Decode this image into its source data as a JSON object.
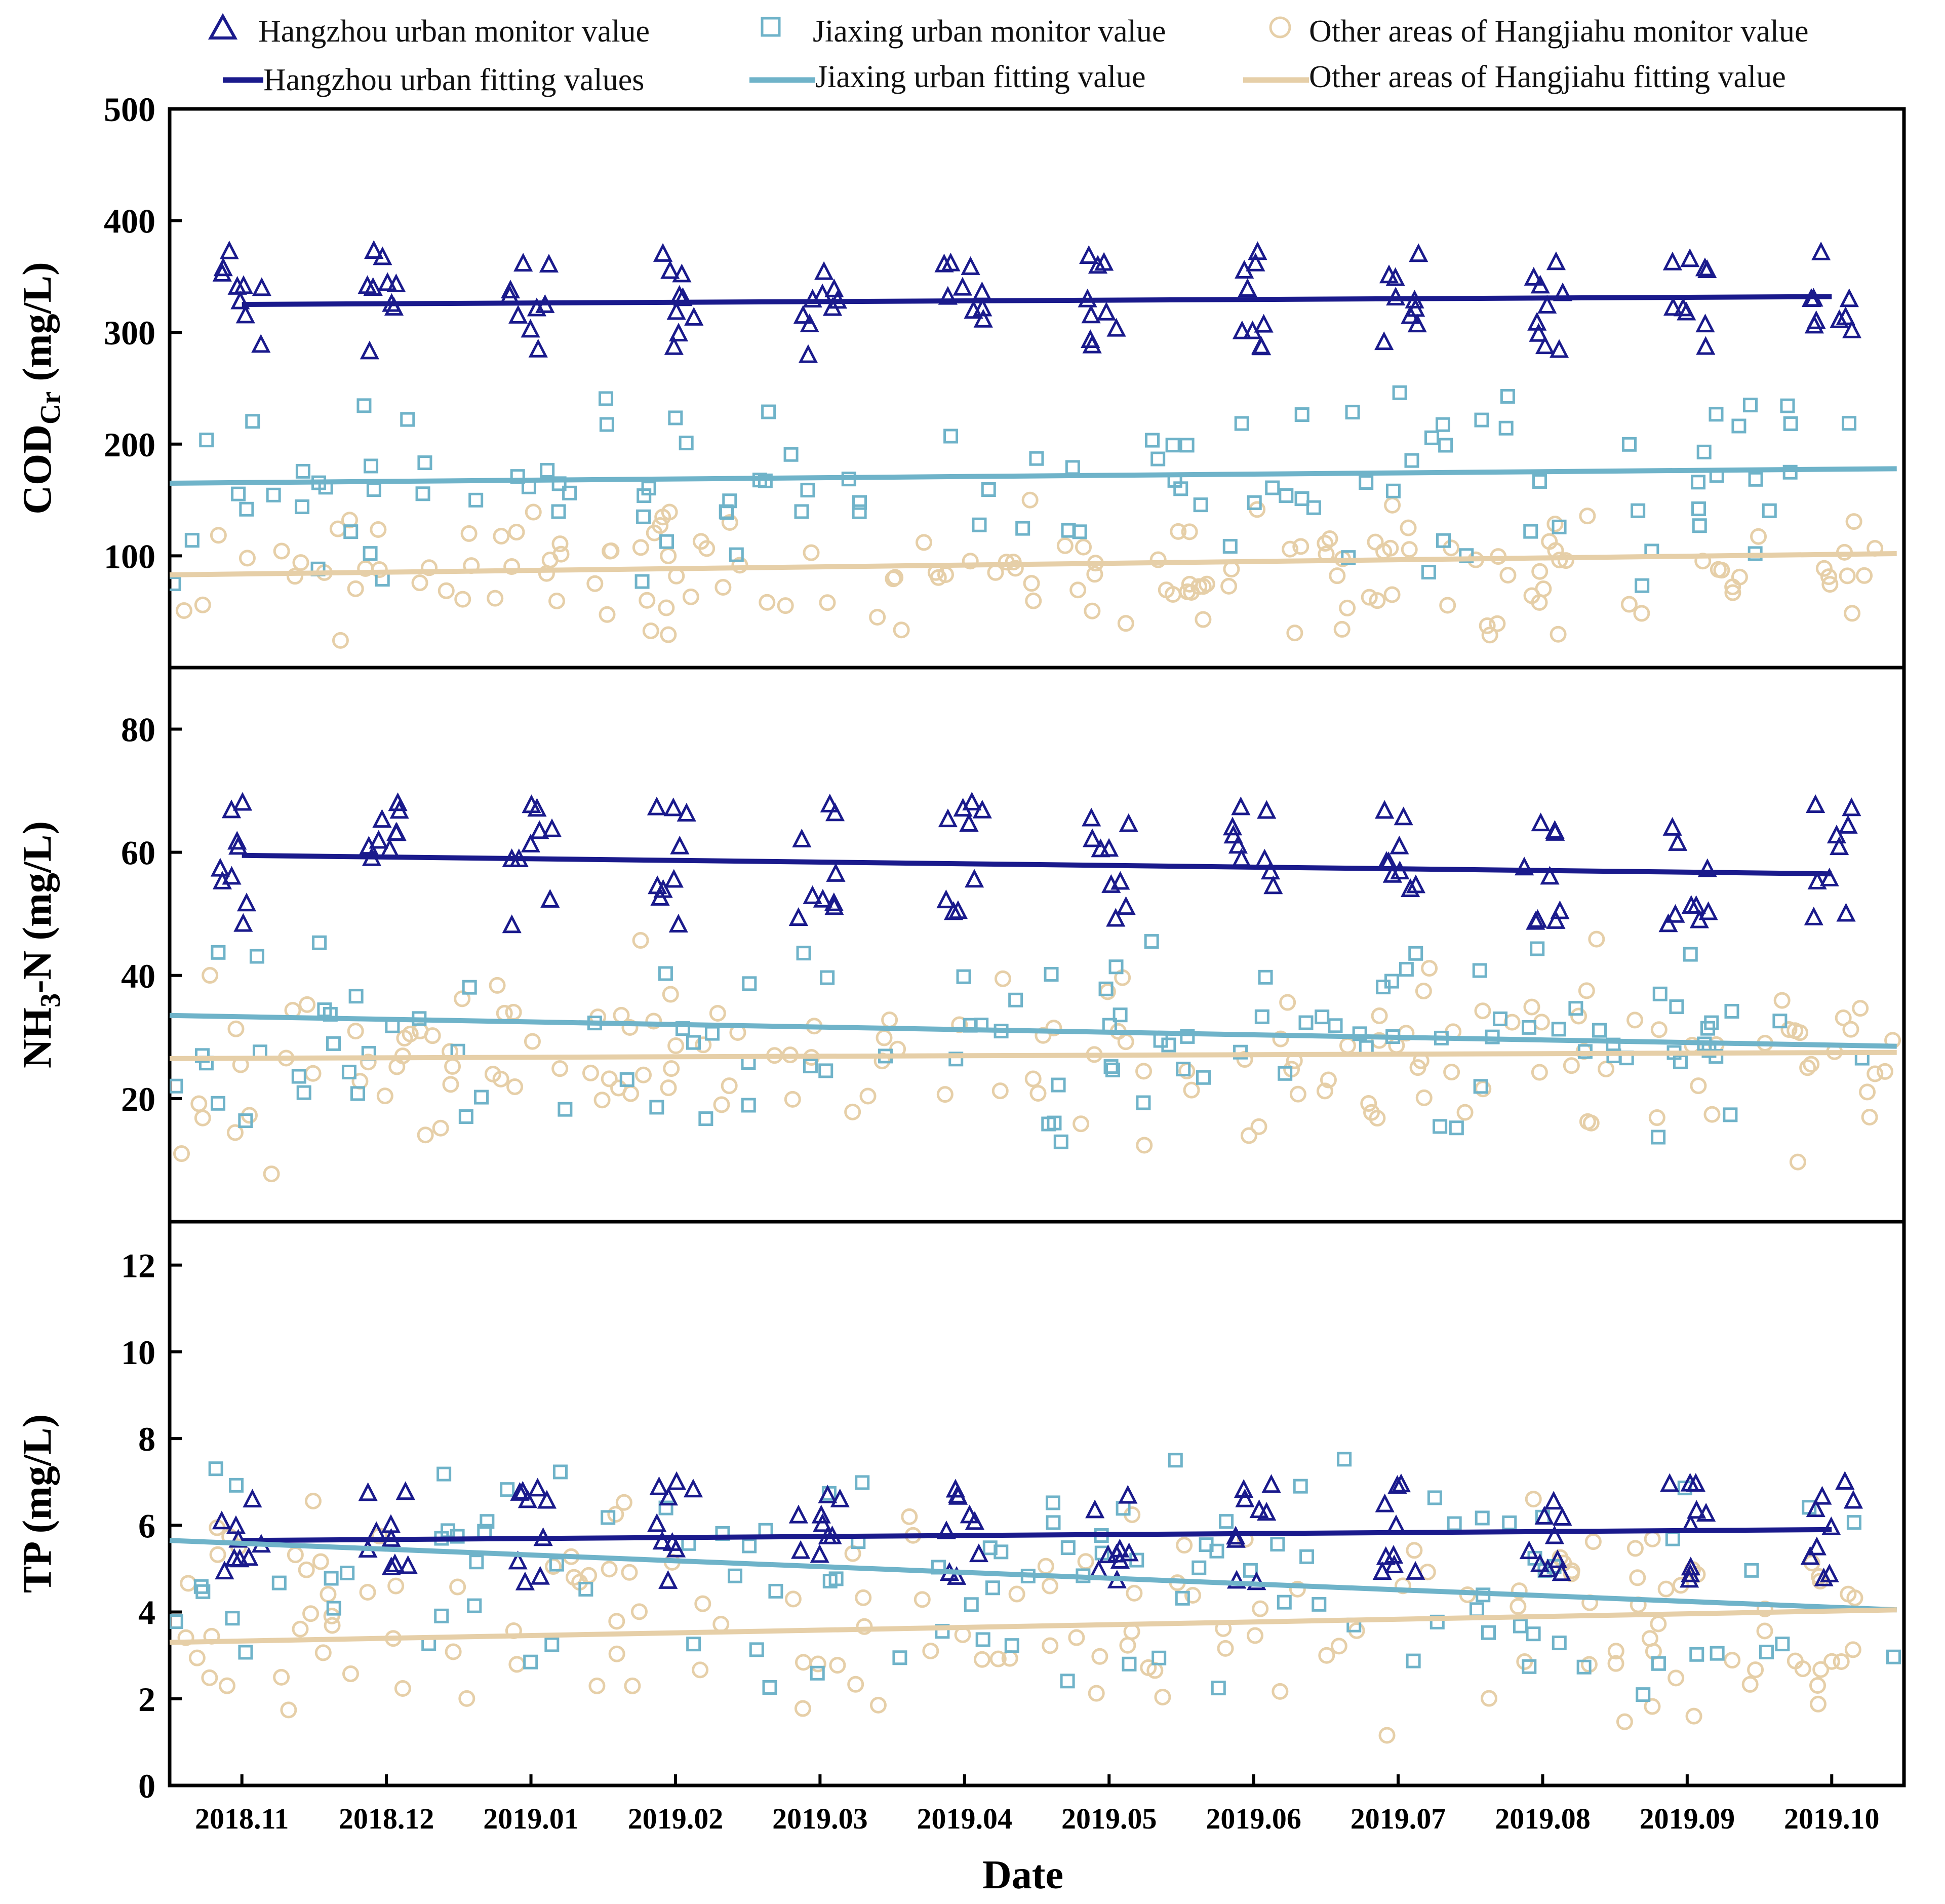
{
  "colors": {
    "hangzhou": "#1a1a8c",
    "jiaxing": "#6fb3c9",
    "other": "#e6cfa8"
  },
  "legend": {
    "hz_monitor": "Hangzhou urban monitor value",
    "jx_monitor": "Jiaxing urban monitor value",
    "ot_monitor": "Other areas of Hangjiahu monitor value",
    "hz_fit": "Hangzhou urban fitting values",
    "jx_fit": "Jiaxing urban fitting value",
    "ot_fit": "Other areas of Hangjiahu fitting value"
  },
  "chart_data": {
    "type": "scatter",
    "xlabel": "Date",
    "x_range": [
      0,
      12
    ],
    "x_ticks": [
      {
        "label": "2018.11",
        "x": 0.5
      },
      {
        "label": "2018.12",
        "x": 1.5
      },
      {
        "label": "2019.01",
        "x": 2.5
      },
      {
        "label": "2019.02",
        "x": 3.5
      },
      {
        "label": "2019.03",
        "x": 4.5
      },
      {
        "label": "2019.04",
        "x": 5.5
      },
      {
        "label": "2019.05",
        "x": 6.5
      },
      {
        "label": "2019.06",
        "x": 7.5
      },
      {
        "label": "2019.07",
        "x": 8.5
      },
      {
        "label": "2019.08",
        "x": 9.5
      },
      {
        "label": "2019.09",
        "x": 10.5
      },
      {
        "label": "2019.10",
        "x": 11.5
      }
    ],
    "panels": [
      {
        "id": "cod",
        "ylabel_main": "COD",
        "ylabel_sub": "Cr",
        "ylabel_unit": " (mg/L)",
        "ylim": [
          0,
          500
        ],
        "yticks": [
          100,
          200,
          300,
          400,
          500
        ],
        "series": [
          {
            "name": "Hangzhou urban",
            "center": 327,
            "spread": 48,
            "fit": [
              325,
              332
            ]
          },
          {
            "name": "Jiaxing urban",
            "center": 165,
            "spread": 75,
            "fit": [
              165,
              178
            ]
          },
          {
            "name": "Other areas of Hangjiahu",
            "center": 85,
            "spread": 45,
            "fit": [
              83,
              102
            ]
          }
        ]
      },
      {
        "id": "nh3",
        "ylabel_main": "NH",
        "ylabel_sub": "3",
        "ylabel_unit": "-N (mg/L)",
        "ylim": [
          0,
          90
        ],
        "yticks": [
          20,
          40,
          60,
          80
        ],
        "series": [
          {
            "name": "Hangzhou urban",
            "center": 58,
            "spread": 10,
            "fit": [
              59.5,
              56.5
            ]
          },
          {
            "name": "Jiaxing urban",
            "center": 30,
            "spread": 14,
            "fit": [
              33.5,
              28.5
            ]
          },
          {
            "name": "Other areas of Hangjiahu",
            "center": 27,
            "spread": 13,
            "fit": [
              26.5,
              27.5
            ]
          }
        ]
      },
      {
        "id": "tp",
        "ylabel_main": "TP",
        "ylabel_sub": "",
        "ylabel_unit": " (mg/L)",
        "ylim": [
          0,
          13
        ],
        "yticks": [
          0,
          2,
          4,
          6,
          8,
          10,
          12
        ],
        "series": [
          {
            "name": "Hangzhou urban",
            "center": 5.8,
            "spread": 1.2,
            "fit": [
              5.65,
              5.9
            ]
          },
          {
            "name": "Jiaxing urban",
            "center": 4.8,
            "spread": 2.5,
            "fit": [
              5.65,
              4.05
            ]
          },
          {
            "name": "Other areas of Hangjiahu",
            "center": 3.6,
            "spread": 2.2,
            "fit": [
              3.3,
              4.05
            ]
          }
        ]
      }
    ]
  }
}
